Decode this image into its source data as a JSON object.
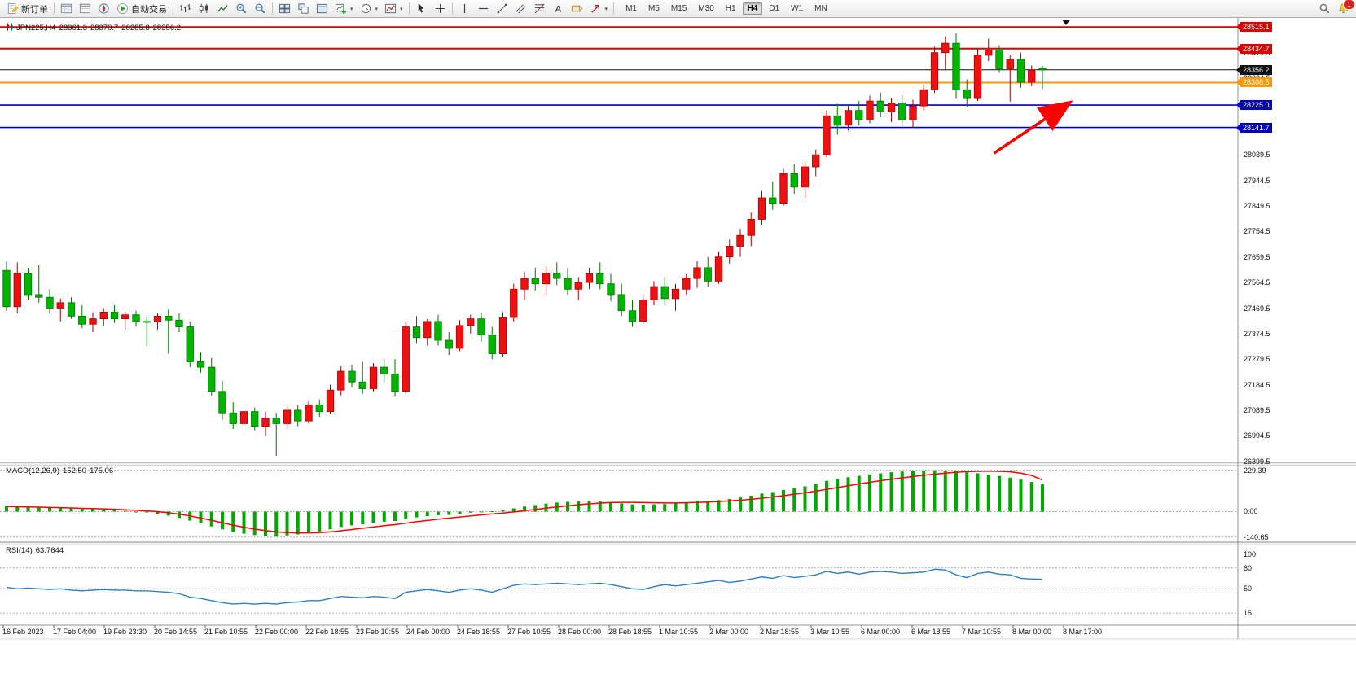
{
  "toolbar": {
    "left_items": [
      {
        "name": "new-order-button",
        "icon": "new-order-icon",
        "label": "新订单"
      },
      {
        "sep": true
      },
      {
        "name": "market-watch-button",
        "icon": "market-watch-icon"
      },
      {
        "name": "data-window-button",
        "icon": "data-window-icon"
      },
      {
        "name": "navigator-button",
        "icon": "navigator-icon"
      },
      {
        "name": "autotrade-button",
        "icon": "autotrade-icon",
        "label": "自动交易"
      },
      {
        "sep": true
      },
      {
        "name": "bar-chart-button",
        "icon": "bars-icon"
      },
      {
        "name": "candle-chart-button",
        "icon": "candles-icon"
      },
      {
        "name": "line-chart-button",
        "icon": "line-chart-icon"
      },
      {
        "name": "zoom-in-button",
        "icon": "zoom-in-icon"
      },
      {
        "name": "zoom-out-button",
        "icon": "zoom-out-icon"
      },
      {
        "sep": true
      },
      {
        "name": "tile-windows-button",
        "icon": "tile-icon"
      },
      {
        "name": "cascade-windows-button",
        "icon": "cascade-icon"
      },
      {
        "name": "arrange-windows-button",
        "icon": "arrange-icon"
      },
      {
        "name": "new-chart-button",
        "icon": "new-chart-icon",
        "caret": true
      },
      {
        "name": "profiles-button",
        "icon": "clock-icon",
        "caret": true
      },
      {
        "name": "indicators-button",
        "icon": "indicators-icon",
        "caret": true
      },
      {
        "sep": true
      },
      {
        "name": "cursor-button",
        "icon": "cursor-icon"
      },
      {
        "name": "crosshair-button",
        "icon": "crosshair-icon"
      },
      {
        "sep": true
      },
      {
        "name": "vertical-line-button",
        "icon": "vline-icon"
      },
      {
        "name": "horizontal-line-button",
        "icon": "hline-icon"
      },
      {
        "name": "trendline-button",
        "icon": "trendline-icon"
      },
      {
        "name": "channel-button",
        "icon": "channel-icon"
      },
      {
        "name": "fibonacci-button",
        "icon": "fibo-icon"
      },
      {
        "name": "text-button",
        "icon": "text-icon"
      },
      {
        "name": "label-button",
        "icon": "label-icon"
      },
      {
        "name": "arrows-button",
        "icon": "arrow-icon",
        "caret": true
      },
      {
        "sep": true
      }
    ],
    "timeframes": [
      "M1",
      "M5",
      "M15",
      "M30",
      "H1",
      "H4",
      "D1",
      "W1",
      "MN"
    ],
    "active_timeframe": "H4",
    "right_items": [
      {
        "name": "search-button",
        "icon": "search-icon"
      },
      {
        "name": "notifications-button",
        "icon": "bell-icon",
        "badge": "1"
      }
    ]
  },
  "colors": {
    "bull": "#ee1111",
    "bull_stroke": "#aa0000",
    "bear": "#00b400",
    "bear_stroke": "#007700",
    "macd_hist": "#00a800",
    "macd_signal": "#ff0000",
    "rsi_line": "#2d7fc1",
    "level_red": "#dd0000",
    "level_orange": "#ff9900",
    "level_blue": "#0000bb",
    "current": "#111111",
    "arrow": "#ff0000",
    "grid": "#b0b0b0",
    "frame": "#909090"
  },
  "chart_data": [
    {
      "type": "candlestick",
      "title": "JPN225,H4",
      "timeframe": "H4",
      "last": {
        "open": "28361.3",
        "high": "28370.7",
        "low": "28285.8",
        "close": "28356.2"
      },
      "ylim": [
        26896,
        28531
      ],
      "axis_ticks": [
        28514.5,
        28419.5,
        28324.5,
        28229.5,
        28134.5,
        28039.5,
        27944.5,
        27849.5,
        27754.5,
        27659.5,
        27564.5,
        27469.5,
        27374.5,
        27279.5,
        27184.5,
        27089.5,
        26994.5,
        26899.5
      ],
      "levels": [
        {
          "price": 28515.1,
          "color": "#dd0000"
        },
        {
          "price": 28434.7,
          "color": "#dd0000"
        },
        {
          "price": 28308.5,
          "color": "#ff9900"
        },
        {
          "price": 28225.0,
          "color": "#0000bb"
        },
        {
          "price": 28141.7,
          "color": "#0000bb"
        }
      ],
      "current_price": 28356.2,
      "annotation_arrow": {
        "from": {
          "i": 91.5,
          "price": 28046
        },
        "to": {
          "i": 98.4,
          "price": 28231
        }
      },
      "x_labels": [
        "16 Feb 2023",
        "17 Feb 04:00",
        "19 Feb 23:30",
        "20 Feb 14:55",
        "21 Feb 10:55",
        "22 Feb 00:00",
        "22 Feb 18:55",
        "23 Feb 10:55",
        "24 Feb 00:00",
        "24 Feb 18:55",
        "27 Feb 10:55",
        "28 Feb 00:00",
        "28 Feb 18:55",
        "1 Mar 10:55",
        "2 Mar 00:00",
        "2 Mar 18:55",
        "3 Mar 10:55",
        "6 Mar 00:00",
        "6 Mar 18:55",
        "7 Mar 10:55",
        "8 Mar 00:00",
        "8 Mar 17:00"
      ],
      "candles": [
        [
          27610,
          27645,
          27460,
          27475
        ],
        [
          27475,
          27640,
          27450,
          27600
        ],
        [
          27600,
          27620,
          27500,
          27520
        ],
        [
          27520,
          27630,
          27490,
          27510
        ],
        [
          27510,
          27540,
          27450,
          27470
        ],
        [
          27470,
          27505,
          27420,
          27490
        ],
        [
          27490,
          27510,
          27430,
          27440
        ],
        [
          27440,
          27480,
          27395,
          27410
        ],
        [
          27410,
          27455,
          27380,
          27430
        ],
        [
          27430,
          27470,
          27405,
          27455
        ],
        [
          27455,
          27480,
          27415,
          27430
        ],
        [
          27430,
          27455,
          27390,
          27445
        ],
        [
          27445,
          27460,
          27400,
          27420
        ],
        [
          27420,
          27435,
          27330,
          27418
        ],
        [
          27418,
          27450,
          27390,
          27440
        ],
        [
          27440,
          27465,
          27300,
          27425
        ],
        [
          27425,
          27450,
          27380,
          27400
        ],
        [
          27400,
          27420,
          27250,
          27270
        ],
        [
          27270,
          27305,
          27230,
          27250
        ],
        [
          27250,
          27285,
          27145,
          27160
        ],
        [
          27160,
          27200,
          27055,
          27080
        ],
        [
          27080,
          27120,
          27020,
          27040
        ],
        [
          27040,
          27105,
          27010,
          27085
        ],
        [
          27085,
          27100,
          27015,
          27030
        ],
        [
          27030,
          27085,
          26995,
          27060
        ],
        [
          27060,
          27080,
          26920,
          27040
        ],
        [
          27040,
          27105,
          27020,
          27090
        ],
        [
          27090,
          27110,
          27030,
          27050
        ],
        [
          27050,
          27125,
          27040,
          27110
        ],
        [
          27110,
          27130,
          27065,
          27085
        ],
        [
          27085,
          27185,
          27075,
          27165
        ],
        [
          27165,
          27255,
          27145,
          27235
        ],
        [
          27235,
          27260,
          27175,
          27195
        ],
        [
          27195,
          27270,
          27150,
          27170
        ],
        [
          27170,
          27265,
          27160,
          27250
        ],
        [
          27250,
          27280,
          27195,
          27225
        ],
        [
          27225,
          27280,
          27140,
          27160
        ],
        [
          27160,
          27420,
          27150,
          27400
        ],
        [
          27400,
          27440,
          27340,
          27360
        ],
        [
          27360,
          27430,
          27330,
          27420
        ],
        [
          27420,
          27445,
          27330,
          27350
        ],
        [
          27350,
          27380,
          27295,
          27320
        ],
        [
          27320,
          27425,
          27310,
          27405
        ],
        [
          27405,
          27445,
          27375,
          27430
        ],
        [
          27430,
          27450,
          27345,
          27370
        ],
        [
          27370,
          27400,
          27280,
          27300
        ],
        [
          27300,
          27455,
          27290,
          27435
        ],
        [
          27435,
          27560,
          27420,
          27540
        ],
        [
          27540,
          27605,
          27500,
          27580
        ],
        [
          27580,
          27620,
          27535,
          27560
        ],
        [
          27560,
          27625,
          27520,
          27600
        ],
        [
          27600,
          27640,
          27555,
          27580
        ],
        [
          27580,
          27620,
          27520,
          27540
        ],
        [
          27540,
          27585,
          27500,
          27565
        ],
        [
          27565,
          27620,
          27540,
          27600
        ],
        [
          27600,
          27640,
          27540,
          27560
        ],
        [
          27560,
          27600,
          27495,
          27520
        ],
        [
          27520,
          27560,
          27440,
          27460
        ],
        [
          27460,
          27500,
          27400,
          27420
        ],
        [
          27420,
          27520,
          27410,
          27500
        ],
        [
          27500,
          27570,
          27480,
          27550
        ],
        [
          27550,
          27585,
          27480,
          27505
        ],
        [
          27505,
          27560,
          27460,
          27540
        ],
        [
          27540,
          27600,
          27520,
          27580
        ],
        [
          27580,
          27645,
          27545,
          27620
        ],
        [
          27620,
          27660,
          27550,
          27570
        ],
        [
          27570,
          27680,
          27560,
          27660
        ],
        [
          27660,
          27725,
          27635,
          27700
        ],
        [
          27700,
          27765,
          27660,
          27740
        ],
        [
          27740,
          27825,
          27700,
          27800
        ],
        [
          27800,
          27905,
          27780,
          27880
        ],
        [
          27880,
          27940,
          27835,
          27860
        ],
        [
          27860,
          27990,
          27850,
          27970
        ],
        [
          27970,
          28005,
          27895,
          27920
        ],
        [
          27920,
          28015,
          27880,
          27995
        ],
        [
          27995,
          28060,
          27960,
          28040
        ],
        [
          28040,
          28205,
          28030,
          28185
        ],
        [
          28185,
          28230,
          28115,
          28150
        ],
        [
          28150,
          28225,
          28130,
          28205
        ],
        [
          28205,
          28240,
          28150,
          28170
        ],
        [
          28170,
          28260,
          28158,
          28240
        ],
        [
          28240,
          28272,
          28180,
          28200
        ],
        [
          28200,
          28252,
          28162,
          28232
        ],
        [
          28232,
          28260,
          28148,
          28170
        ],
        [
          28170,
          28245,
          28140,
          28222
        ],
        [
          28222,
          28300,
          28205,
          28282
        ],
        [
          28282,
          28442,
          28270,
          28420
        ],
        [
          28420,
          28480,
          28355,
          28455
        ],
        [
          28455,
          28492,
          28250,
          28282
        ],
        [
          28282,
          28320,
          28218,
          28252
        ],
        [
          28252,
          28432,
          28240,
          28410
        ],
        [
          28410,
          28472,
          28388,
          28430
        ],
        [
          28430,
          28448,
          28345,
          28360
        ],
        [
          28360,
          28410,
          28238,
          28395
        ],
        [
          28395,
          28420,
          28290,
          28310
        ],
        [
          28310,
          28372,
          28295,
          28355
        ],
        [
          28361.3,
          28370.7,
          28285.8,
          28356.2
        ]
      ]
    },
    {
      "type": "bar",
      "name": "MACD(12,26,9)",
      "value_main": "152.50",
      "value_signal": "175.06",
      "ylim": [
        -160,
        250
      ],
      "axis_ticks": [
        "229.39",
        "0.00",
        "-140.65"
      ],
      "hist": [
        32,
        30,
        28,
        25,
        22,
        20,
        18,
        15,
        14,
        12,
        8,
        5,
        0,
        -5,
        -12,
        -22,
        -35,
        -50,
        -65,
        -82,
        -98,
        -112,
        -122,
        -130,
        -135,
        -138,
        -132,
        -126,
        -118,
        -110,
        -98,
        -85,
        -76,
        -70,
        -62,
        -56,
        -52,
        -40,
        -32,
        -25,
        -20,
        -18,
        -12,
        -6,
        -2,
        2,
        8,
        18,
        28,
        36,
        44,
        50,
        54,
        56,
        57,
        56,
        52,
        46,
        40,
        38,
        40,
        42,
        46,
        52,
        58,
        60,
        64,
        70,
        78,
        88,
        100,
        108,
        120,
        128,
        140,
        152,
        170,
        180,
        190,
        198,
        206,
        212,
        218,
        222,
        226,
        228,
        229,
        228,
        224,
        218,
        212,
        205,
        197,
        188,
        177,
        164,
        152.5
      ],
      "signal": [
        28,
        27,
        26,
        25,
        23,
        22,
        20,
        18,
        17,
        15,
        13,
        10,
        7,
        4,
        0,
        -6,
        -14,
        -24,
        -36,
        -48,
        -62,
        -75,
        -87,
        -97,
        -105,
        -112,
        -116,
        -118,
        -118,
        -116,
        -112,
        -106,
        -99,
        -92,
        -85,
        -78,
        -72,
        -64,
        -56,
        -49,
        -42,
        -36,
        -30,
        -24,
        -18,
        -13,
        -8,
        -2,
        5,
        12,
        19,
        26,
        32,
        38,
        43,
        47,
        50,
        51,
        51,
        50,
        49,
        48,
        48,
        49,
        51,
        53,
        56,
        59,
        63,
        68,
        74,
        81,
        88,
        96,
        104,
        113,
        123,
        133,
        143,
        153,
        162,
        171,
        179,
        187,
        194,
        201,
        207,
        213,
        218,
        221,
        223,
        224,
        223,
        220,
        213,
        200,
        175.06
      ]
    },
    {
      "type": "line",
      "name": "RSI(14)",
      "value": "63.7644",
      "ylim": [
        0,
        110
      ],
      "axis_ticks": [
        "100",
        "80",
        "50",
        "15"
      ],
      "levels": [
        80,
        50,
        15
      ],
      "values": [
        52,
        50,
        51,
        50,
        49,
        50,
        48,
        47,
        48,
        49,
        48,
        48,
        47,
        47,
        46,
        45,
        43,
        38,
        36,
        33,
        30,
        28,
        29,
        28,
        29,
        28,
        30,
        31,
        33,
        33,
        36,
        39,
        38,
        37,
        39,
        38,
        36,
        45,
        47,
        49,
        47,
        45,
        48,
        50,
        48,
        45,
        50,
        55,
        57,
        56,
        57,
        58,
        57,
        56,
        57,
        58,
        56,
        53,
        50,
        49,
        53,
        56,
        54,
        56,
        58,
        60,
        62,
        59,
        61,
        64,
        67,
        65,
        69,
        66,
        68,
        70,
        75,
        72,
        74,
        71,
        74,
        75,
        74,
        72,
        73,
        74,
        78,
        77,
        70,
        66,
        72,
        74,
        71,
        70,
        65,
        64,
        63.76
      ]
    }
  ]
}
